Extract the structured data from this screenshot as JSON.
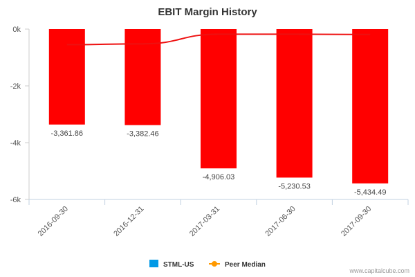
{
  "chart_data": {
    "type": "bar",
    "title": "EBIT Margin History",
    "xlabel": "",
    "ylabel": "",
    "categories": [
      "2016-09-30",
      "2016-12-31",
      "2017-03-31",
      "2017-06-30",
      "2017-09-30"
    ],
    "series": [
      {
        "name": "STML-US",
        "type": "bar",
        "values": [
          -3361.86,
          -3382.46,
          -4906.03,
          -5230.53,
          -5434.49
        ],
        "labels": [
          "-3,361.86",
          "-3,382.46",
          "-4,906.03",
          "-5,230.53",
          "-5,434.49"
        ],
        "color": "#ff0000",
        "legend_color": "#0099e6"
      },
      {
        "name": "Peer Median",
        "type": "line",
        "values": [
          -550,
          -520,
          -180,
          -180,
          -190
        ],
        "color": "#ee1111",
        "legend_color": "#ff9900"
      }
    ],
    "ylim": [
      -6000,
      0
    ],
    "yticks": [
      0,
      -2000,
      -4000,
      -6000
    ],
    "ytick_labels": [
      "0k",
      "-2k",
      "-4k",
      "-6k"
    ],
    "grid": false,
    "legend": "bottom-center"
  },
  "credit": "www.capitalcube.com"
}
